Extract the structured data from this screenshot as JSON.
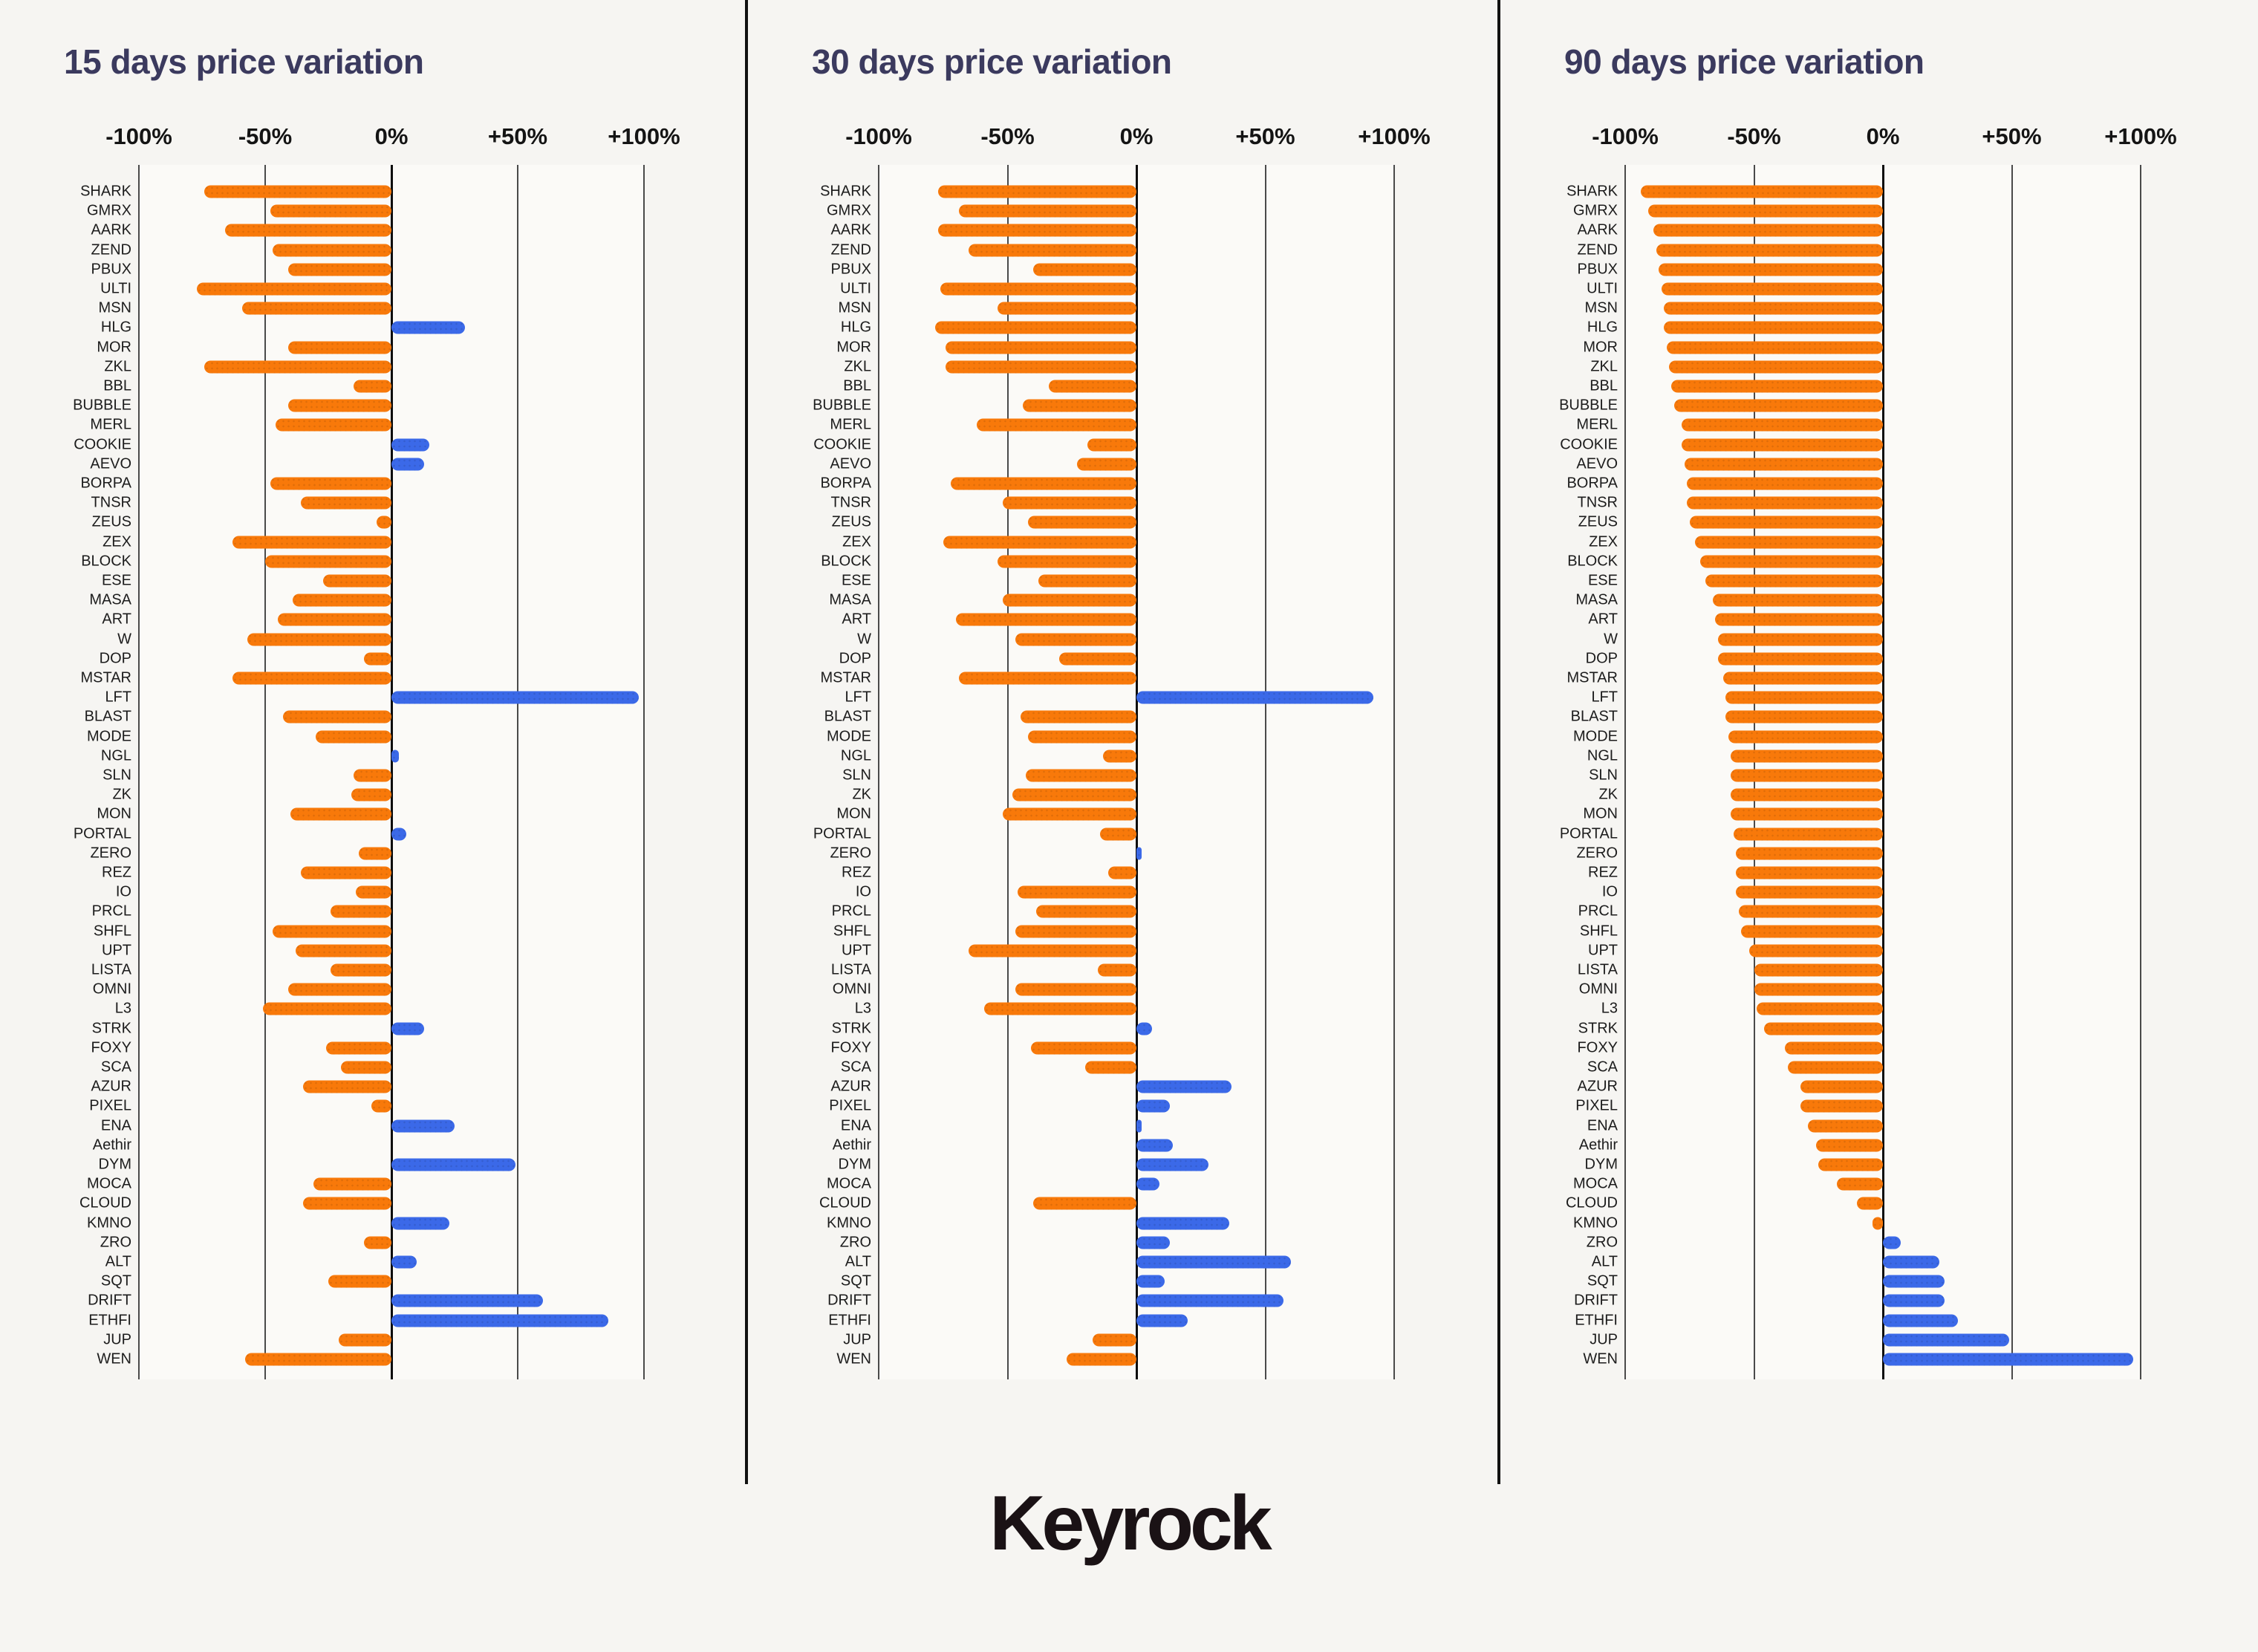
{
  "logo": {
    "text": "Keyrock"
  },
  "colors": {
    "negative_bar": "#F8790A",
    "positive_bar": "#3B69E8",
    "title": "#3b3a5e",
    "background": "#f6f5f2",
    "plot_background": "#fbfaf7",
    "gridline": "#4a4a4a",
    "zero_line": "#0c0c0c",
    "row_label": "#1c1c1c",
    "divider": "#111111"
  },
  "axis": {
    "tick_labels": [
      "-100%",
      "-50%",
      "0%",
      "+50%",
      "+100%"
    ],
    "tick_values": [
      -100,
      -50,
      0,
      50,
      100
    ]
  },
  "chart_data": [
    {
      "type": "bar",
      "orientation": "horizontal",
      "title": "15 days price variation",
      "unit": "%",
      "xlim": [
        -100,
        100
      ],
      "grid": "vertical-ticks",
      "legend": "none",
      "categories": [
        "SHARK",
        "GMRX",
        "AARK",
        "ZEND",
        "PBUX",
        "ULTI",
        "MSN",
        "HLG",
        "MOR",
        "ZKL",
        "BBL",
        "BUBBLE",
        "MERL",
        "COOKIE",
        "AEVO",
        "BORPA",
        "TNSR",
        "ZEUS",
        "ZEX",
        "BLOCK",
        "ESE",
        "MASA",
        "ART",
        "W",
        "DOP",
        "MSTAR",
        "LFT",
        "BLAST",
        "MODE",
        "NGL",
        "SLN",
        "ZK",
        "MON",
        "PORTAL",
        "ZERO",
        "REZ",
        "IO",
        "PRCL",
        "SHFL",
        "UPT",
        "LISTA",
        "OMNI",
        "L3",
        "STRK",
        "FOXY",
        "SCA",
        "AZUR",
        "PIXEL",
        "ENA",
        "Aethir",
        "DYM",
        "MOCA",
        "CLOUD",
        "KMNO",
        "ZRO",
        "ALT",
        "SQT",
        "DRIFT",
        "ETHFI",
        "JUP",
        "WEN"
      ],
      "values": [
        -74,
        -48,
        -66,
        -47,
        -41,
        -77,
        -59,
        29,
        -41,
        -74,
        -15,
        -41,
        -46,
        15,
        13,
        -48,
        -36,
        -6,
        -63,
        -50,
        -27,
        -39,
        -45,
        -57,
        -11,
        -63,
        98,
        -43,
        -30,
        3,
        -15,
        -16,
        -40,
        6,
        -13,
        -36,
        -14,
        -24,
        -47,
        -38,
        -24,
        -41,
        -51,
        13,
        -26,
        -20,
        -35,
        -8,
        25,
        0,
        49,
        -31,
        -35,
        23,
        -11,
        10,
        -25,
        60,
        86,
        -21,
        -58
      ]
    },
    {
      "type": "bar",
      "orientation": "horizontal",
      "title": "30 days price variation",
      "unit": "%",
      "xlim": [
        -100,
        100
      ],
      "grid": "vertical-ticks",
      "legend": "none",
      "categories": [
        "SHARK",
        "GMRX",
        "AARK",
        "ZEND",
        "PBUX",
        "ULTI",
        "MSN",
        "HLG",
        "MOR",
        "ZKL",
        "BBL",
        "BUBBLE",
        "MERL",
        "COOKIE",
        "AEVO",
        "BORPA",
        "TNSR",
        "ZEUS",
        "ZEX",
        "BLOCK",
        "ESE",
        "MASA",
        "ART",
        "W",
        "DOP",
        "MSTAR",
        "LFT",
        "BLAST",
        "MODE",
        "NGL",
        "SLN",
        "ZK",
        "MON",
        "PORTAL",
        "ZERO",
        "REZ",
        "IO",
        "PRCL",
        "SHFL",
        "UPT",
        "LISTA",
        "OMNI",
        "L3",
        "STRK",
        "FOXY",
        "SCA",
        "AZUR",
        "PIXEL",
        "ENA",
        "Aethir",
        "DYM",
        "MOCA",
        "CLOUD",
        "KMNO",
        "ZRO",
        "ALT",
        "SQT",
        "DRIFT",
        "ETHFI",
        "JUP",
        "WEN"
      ],
      "values": [
        -77,
        -69,
        -77,
        -65,
        -40,
        -76,
        -54,
        -78,
        -74,
        -74,
        -34,
        -44,
        -62,
        -19,
        -23,
        -72,
        -52,
        -42,
        -75,
        -54,
        -38,
        -52,
        -70,
        -47,
        -30,
        -69,
        92,
        -45,
        -42,
        -13,
        -43,
        -48,
        -52,
        -14,
        2,
        -11,
        -46,
        -39,
        -47,
        -65,
        -15,
        -47,
        -59,
        6,
        -41,
        -20,
        37,
        13,
        2,
        14,
        28,
        9,
        -40,
        36,
        13,
        60,
        11,
        57,
        20,
        -17,
        -27
      ]
    },
    {
      "type": "bar",
      "orientation": "horizontal",
      "title": "90 days price variation",
      "unit": "%",
      "xlim": [
        -100,
        100
      ],
      "grid": "vertical-ticks",
      "legend": "none",
      "categories": [
        "SHARK",
        "GMRX",
        "AARK",
        "ZEND",
        "PBUX",
        "ULTI",
        "MSN",
        "HLG",
        "MOR",
        "ZKL",
        "BBL",
        "BUBBLE",
        "MERL",
        "COOKIE",
        "AEVO",
        "BORPA",
        "TNSR",
        "ZEUS",
        "ZEX",
        "BLOCK",
        "ESE",
        "MASA",
        "ART",
        "W",
        "DOP",
        "MSTAR",
        "LFT",
        "BLAST",
        "MODE",
        "NGL",
        "SLN",
        "ZK",
        "MON",
        "PORTAL",
        "ZERO",
        "REZ",
        "IO",
        "PRCL",
        "SHFL",
        "UPT",
        "LISTA",
        "OMNI",
        "L3",
        "STRK",
        "FOXY",
        "SCA",
        "AZUR",
        "PIXEL",
        "ENA",
        "Aethir",
        "DYM",
        "MOCA",
        "CLOUD",
        "KMNO",
        "ZRO",
        "ALT",
        "SQT",
        "DRIFT",
        "ETHFI",
        "JUP",
        "WEN"
      ],
      "values": [
        -94,
        -91,
        -89,
        -88,
        -87,
        -86,
        -85,
        -85,
        -84,
        -83,
        -82,
        -81,
        -78,
        -78,
        -77,
        -76,
        -76,
        -75,
        -73,
        -71,
        -69,
        -66,
        -65,
        -64,
        -64,
        -62,
        -61,
        -61,
        -60,
        -59,
        -59,
        -59,
        -59,
        -58,
        -57,
        -57,
        -57,
        -56,
        -55,
        -52,
        -50,
        -50,
        -49,
        -46,
        -38,
        -37,
        -32,
        -32,
        -29,
        -26,
        -25,
        -18,
        -10,
        -4,
        7,
        22,
        24,
        24,
        29,
        49,
        97
      ]
    }
  ]
}
